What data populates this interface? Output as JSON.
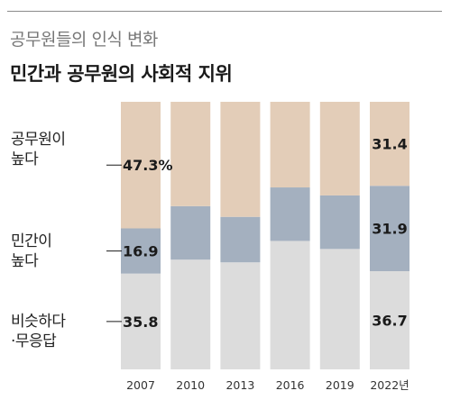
{
  "subtitle": "공무원들의 인식 변화",
  "title": "민간과 공무원의 사회적 지위",
  "legend": {
    "higher_public": [
      "공무원이",
      "높다"
    ],
    "higher_private": [
      "민간이",
      "높다"
    ],
    "similar": [
      "비슷하다",
      "·무응답"
    ]
  },
  "colors": {
    "higher_public": "#e3cdb8",
    "higher_private": "#a4b0bf",
    "similar": "#dcdcdc",
    "leader_line": "#1a1a1a",
    "rule": "#8a8a8a"
  },
  "chart_data": {
    "type": "bar",
    "stacked": true,
    "percent_stacked": true,
    "categories": [
      "2007",
      "2010",
      "2013",
      "2016",
      "2019",
      "2022년"
    ],
    "series": [
      {
        "key": "similar",
        "values": [
          35.8,
          41.0,
          40.0,
          48.0,
          45.0,
          36.7
        ]
      },
      {
        "key": "higher_private",
        "values": [
          16.9,
          20.0,
          17.0,
          20.0,
          20.0,
          31.9
        ]
      },
      {
        "key": "higher_public",
        "values": [
          47.3,
          39.0,
          43.0,
          32.0,
          35.0,
          31.4
        ]
      }
    ],
    "labels": [
      {
        "category_index": 0,
        "series_key": "higher_public",
        "text": "47.3%"
      },
      {
        "category_index": 0,
        "series_key": "higher_private",
        "text": "16.9"
      },
      {
        "category_index": 0,
        "series_key": "similar",
        "text": "35.8"
      },
      {
        "category_index": 5,
        "series_key": "higher_public",
        "text": "31.4"
      },
      {
        "category_index": 5,
        "series_key": "higher_private",
        "text": "31.9"
      },
      {
        "category_index": 5,
        "series_key": "similar",
        "text": "36.7"
      }
    ],
    "ylim": [
      0,
      100
    ],
    "grid": false,
    "legend_position": "left"
  }
}
